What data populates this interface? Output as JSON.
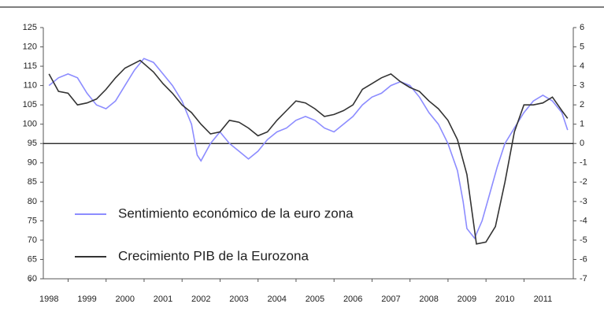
{
  "chart_data": {
    "type": "line",
    "xlim": [
      1997.85,
      2011.8
    ],
    "xticks": [
      1998,
      1999,
      2000,
      2001,
      2002,
      2003,
      2004,
      2005,
      2006,
      2007,
      2008,
      2009,
      2010,
      2011
    ],
    "ylim": [
      60,
      125
    ],
    "yticks": [
      60,
      65,
      70,
      75,
      80,
      85,
      90,
      95,
      100,
      105,
      110,
      115,
      120,
      125
    ],
    "y2lim": [
      -7,
      6
    ],
    "y2ticks": [
      -7,
      -6,
      -5,
      -4,
      -3,
      -2,
      -1,
      0,
      1,
      2,
      3,
      4,
      5,
      6
    ],
    "legend": "lower left",
    "series": [
      {
        "name": "Sentimiento económico de la euro zona",
        "color": "#8c8cff",
        "axis": "y",
        "x": [
          1998.0,
          1998.25,
          1998.5,
          1998.75,
          1999.0,
          1999.25,
          1999.5,
          1999.75,
          2000.0,
          2000.25,
          2000.5,
          2000.75,
          2001.0,
          2001.25,
          2001.5,
          2001.75,
          2001.9,
          2002.0,
          2002.25,
          2002.5,
          2002.75,
          2003.0,
          2003.25,
          2003.5,
          2003.75,
          2004.0,
          2004.25,
          2004.5,
          2004.75,
          2005.0,
          2005.25,
          2005.5,
          2005.75,
          2006.0,
          2006.25,
          2006.5,
          2006.75,
          2007.0,
          2007.25,
          2007.5,
          2007.75,
          2008.0,
          2008.25,
          2008.5,
          2008.75,
          2008.9,
          2009.0,
          2009.2,
          2009.4,
          2009.6,
          2009.8,
          2010.0,
          2010.25,
          2010.5,
          2010.75,
          2011.0,
          2011.25,
          2011.5,
          2011.65
        ],
        "values": [
          110,
          112,
          113,
          112,
          108,
          105,
          104,
          106,
          110,
          114,
          117,
          116,
          113,
          110,
          106,
          100,
          92,
          90.5,
          95,
          98,
          95,
          93,
          91,
          93,
          96,
          98,
          99,
          101,
          102,
          101,
          99,
          98,
          100,
          102,
          105,
          107,
          108,
          110,
          111,
          110,
          107,
          103,
          100,
          95,
          88,
          80,
          73,
          70.5,
          75,
          82,
          89,
          95,
          99,
          103,
          106,
          107.5,
          106,
          103,
          98.5
        ]
      },
      {
        "name": "Crecimiento PIB de la Eurozona",
        "color": "#333333",
        "axis": "y2",
        "x": [
          1998.0,
          1998.25,
          1998.5,
          1998.75,
          1999.0,
          1999.25,
          1999.5,
          1999.75,
          2000.0,
          2000.4,
          2000.75,
          2001.0,
          2001.25,
          2001.5,
          2001.75,
          2002.0,
          2002.25,
          2002.5,
          2002.75,
          2003.0,
          2003.25,
          2003.5,
          2003.75,
          2004.0,
          2004.25,
          2004.5,
          2004.75,
          2005.0,
          2005.25,
          2005.5,
          2005.75,
          2006.0,
          2006.25,
          2006.5,
          2006.75,
          2007.0,
          2007.25,
          2007.5,
          2007.75,
          2008.0,
          2008.25,
          2008.5,
          2008.75,
          2009.0,
          2009.25,
          2009.5,
          2009.75,
          2010.0,
          2010.25,
          2010.5,
          2010.75,
          2011.0,
          2011.25,
          2011.5,
          2011.65
        ],
        "values": [
          3.6,
          2.7,
          2.6,
          2.0,
          2.1,
          2.3,
          2.8,
          3.4,
          3.9,
          4.3,
          3.7,
          3.1,
          2.6,
          2.0,
          1.6,
          1.0,
          0.5,
          0.6,
          1.2,
          1.1,
          0.8,
          0.4,
          0.6,
          1.2,
          1.7,
          2.2,
          2.1,
          1.8,
          1.4,
          1.5,
          1.7,
          2.0,
          2.8,
          3.1,
          3.4,
          3.6,
          3.2,
          2.9,
          2.7,
          2.2,
          1.8,
          1.2,
          0.2,
          -1.6,
          -5.2,
          -5.1,
          -4.3,
          -2.0,
          0.6,
          2.0,
          2.0,
          2.1,
          2.4,
          1.7,
          1.3
        ]
      }
    ]
  }
}
